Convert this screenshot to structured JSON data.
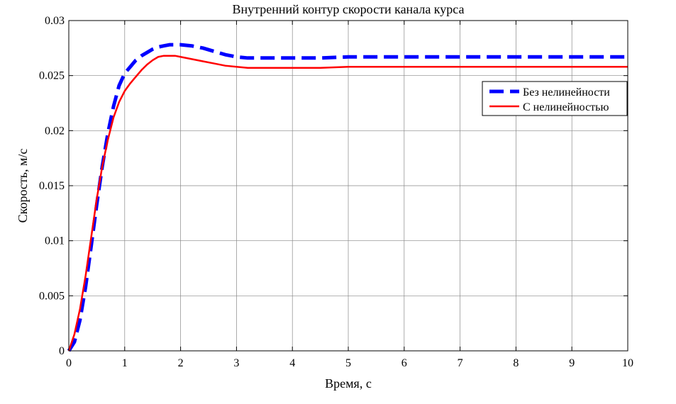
{
  "chart_data": {
    "type": "line",
    "title": "Внутренний контур скорости канала курса",
    "xlabel": "Время, с",
    "ylabel": "Скорость, м/с",
    "xlim": [
      0,
      10
    ],
    "ylim": [
      0,
      0.03
    ],
    "xticks": [
      "0",
      "1",
      "2",
      "3",
      "4",
      "5",
      "6",
      "7",
      "8",
      "9",
      "10"
    ],
    "yticks": [
      "0",
      "0.005",
      "0.01",
      "0.015",
      "0.02",
      "0.025",
      "0.03"
    ],
    "grid": true,
    "legend_position": "top-right",
    "series": [
      {
        "name": "Без нелинейности",
        "color": "#0000ff",
        "style": "dashed",
        "x": [
          0,
          0.1,
          0.2,
          0.3,
          0.4,
          0.5,
          0.6,
          0.7,
          0.8,
          0.9,
          1.0,
          1.1,
          1.2,
          1.3,
          1.4,
          1.5,
          1.6,
          1.7,
          1.8,
          1.9,
          2.0,
          2.2,
          2.4,
          2.6,
          2.8,
          3.0,
          3.2,
          3.4,
          3.6,
          3.8,
          4.0,
          4.5,
          5.0,
          6.0,
          7.0,
          8.0,
          9.0,
          10.0
        ],
        "y": [
          0,
          0.0008,
          0.0028,
          0.0058,
          0.0095,
          0.0133,
          0.0168,
          0.0198,
          0.0222,
          0.0241,
          0.0252,
          0.0258,
          0.0264,
          0.0268,
          0.0271,
          0.0274,
          0.0276,
          0.0277,
          0.0278,
          0.0278,
          0.0278,
          0.0277,
          0.0275,
          0.0272,
          0.0269,
          0.0267,
          0.0266,
          0.0266,
          0.0266,
          0.0266,
          0.0266,
          0.0266,
          0.0267,
          0.0267,
          0.0267,
          0.0267,
          0.0267,
          0.0267
        ]
      },
      {
        "name": "С нелинейностью",
        "color": "#ff0000",
        "style": "solid",
        "x": [
          0,
          0.1,
          0.2,
          0.3,
          0.4,
          0.5,
          0.6,
          0.7,
          0.8,
          0.9,
          1.0,
          1.1,
          1.2,
          1.3,
          1.4,
          1.5,
          1.6,
          1.7,
          1.8,
          1.9,
          2.0,
          2.2,
          2.4,
          2.6,
          2.8,
          3.0,
          3.2,
          3.4,
          3.6,
          3.8,
          4.0,
          4.5,
          5.0,
          6.0,
          7.0,
          8.0,
          9.0,
          10.0
        ],
        "y": [
          0,
          0.0015,
          0.0038,
          0.0068,
          0.0103,
          0.0138,
          0.0168,
          0.0192,
          0.0212,
          0.0226,
          0.0236,
          0.0243,
          0.0249,
          0.0255,
          0.026,
          0.0264,
          0.0267,
          0.0268,
          0.0268,
          0.0268,
          0.0267,
          0.0265,
          0.0263,
          0.0261,
          0.0259,
          0.0258,
          0.0257,
          0.0257,
          0.0257,
          0.0257,
          0.0257,
          0.0257,
          0.0258,
          0.0258,
          0.0258,
          0.0258,
          0.0258,
          0.0258
        ]
      }
    ]
  }
}
